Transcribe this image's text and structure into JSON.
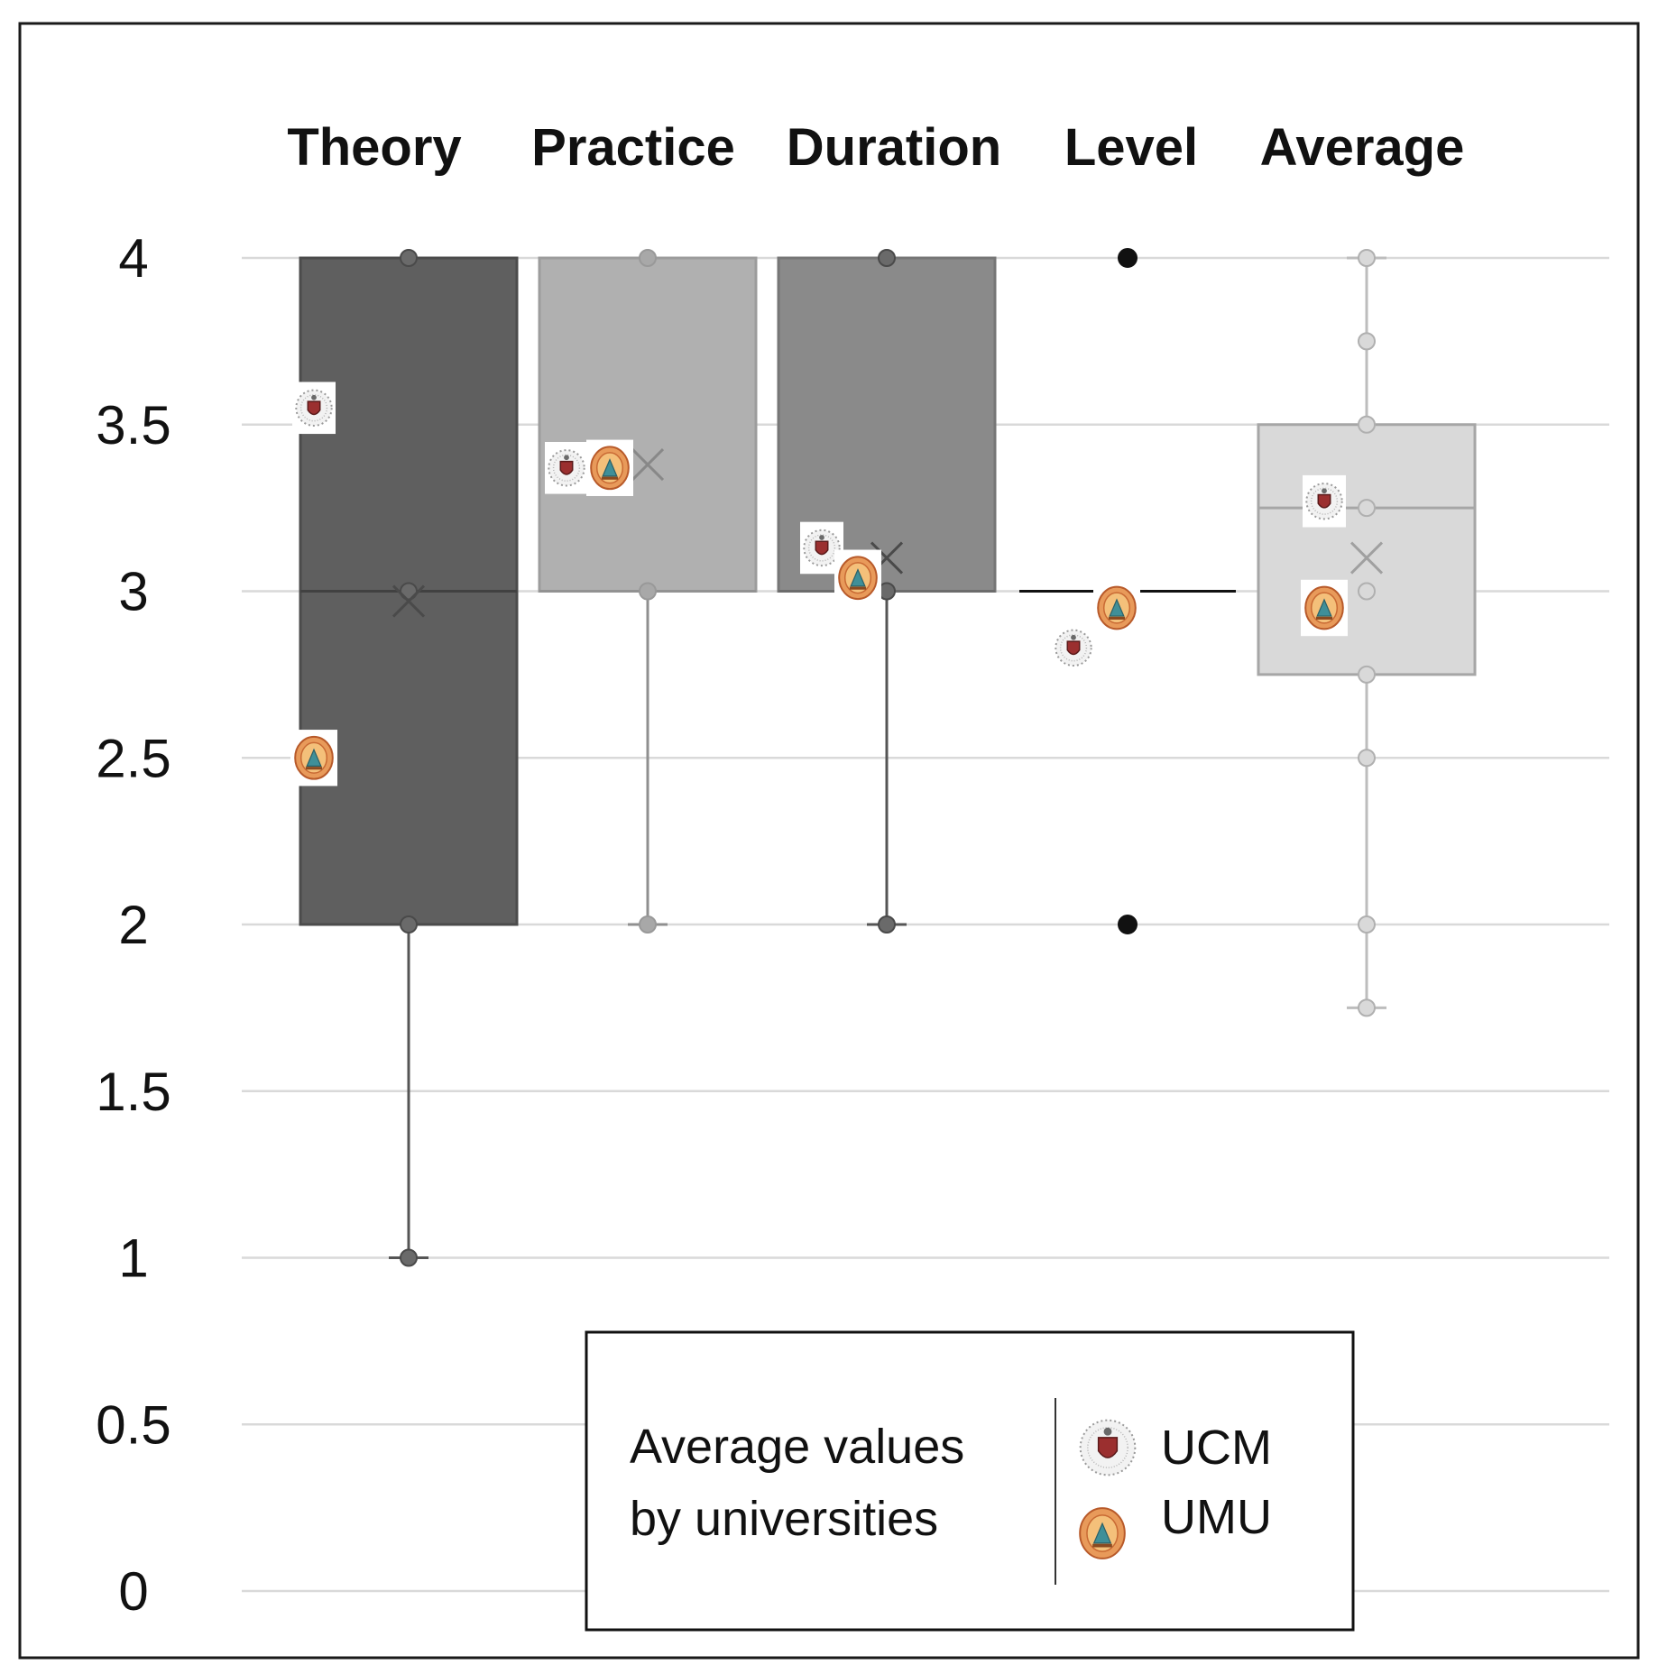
{
  "chart_data": {
    "type": "box",
    "categories": [
      "Theory",
      "Practice",
      "Duration",
      "Level",
      "Average"
    ],
    "ylim": [
      0,
      4
    ],
    "y_ticks": [
      "4",
      "3.5",
      "3",
      "2.5",
      "2",
      "1.5",
      "1",
      "0.5",
      "0"
    ],
    "grid": true,
    "boxes": [
      {
        "category": "Theory",
        "min": 1,
        "q1": 2,
        "median": 3,
        "q3": 4,
        "max": 4,
        "mean": 2.97,
        "points": [
          1,
          2,
          3,
          4
        ],
        "color": "#5f5f5f"
      },
      {
        "category": "Practice",
        "min": 2,
        "q1": 3,
        "median": 3,
        "q3": 4,
        "max": 4,
        "mean": 3.38,
        "points": [
          2,
          3,
          4
        ],
        "color": "#b0b0b0"
      },
      {
        "category": "Duration",
        "min": 2,
        "q1": 3,
        "median": 3,
        "q3": 4,
        "max": 4,
        "mean": 3.1,
        "points": [
          2,
          3,
          4
        ],
        "color": "#8a8a8a"
      },
      {
        "category": "Level",
        "min": 3,
        "q1": 3,
        "median": 3,
        "q3": 3,
        "max": 3,
        "mean": 3,
        "points": [
          2,
          4
        ],
        "color": "#1a1a1a"
      },
      {
        "category": "Average",
        "min": 1.75,
        "q1": 2.75,
        "median": 3.25,
        "q3": 3.5,
        "max": 4,
        "mean": 3.1,
        "points": [
          1.75,
          2,
          2.5,
          2.75,
          3,
          3.25,
          3.5,
          3.75,
          4
        ],
        "color": "#d9d9d9"
      }
    ],
    "university_averages": [
      {
        "name": "UCM",
        "values": [
          3.55,
          3.37,
          3.13,
          2.83,
          3.27
        ]
      },
      {
        "name": "UMU",
        "values": [
          2.5,
          3.37,
          3.04,
          2.95,
          2.95
        ]
      }
    ],
    "legend": {
      "title": "Average values by universities",
      "title_lines": [
        "Average values",
        "by universities"
      ],
      "entries": [
        "UCM",
        "UMU"
      ],
      "placement": "bottom-center"
    },
    "ucm_icon": "ucm-seal-icon",
    "umu_icon": "umu-seal-icon"
  }
}
